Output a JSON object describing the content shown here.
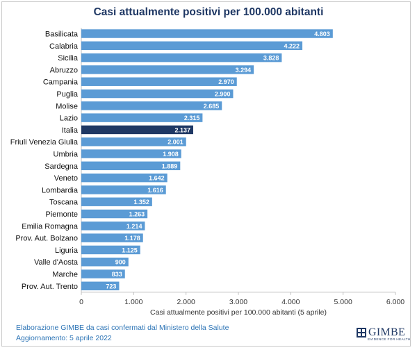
{
  "chart_data": {
    "type": "bar",
    "orientation": "horizontal",
    "title": "Casi attualmente positivi per 100.000 abitanti",
    "xlabel": "Casi attualmente positivi per 100.000 abitanti (5 aprile)",
    "xlim": [
      0,
      6000
    ],
    "xticks": [
      "0",
      "1.000",
      "2.000",
      "3.000",
      "4.000",
      "5.000",
      "6.000"
    ],
    "bar_color": "#5b9bd5",
    "highlight_color": "#1f3864",
    "highlight_category": "Italia",
    "categories": [
      "Basilicata",
      "Calabria",
      "Sicilia",
      "Abruzzo",
      "Campania",
      "Puglia",
      "Molise",
      "Lazio",
      "Italia",
      "Friuli Venezia Giulia",
      "Umbria",
      "Sardegna",
      "Veneto",
      "Lombardia",
      "Toscana",
      "Piemonte",
      "Emilia Romagna",
      "Prov. Aut. Bolzano",
      "Liguria",
      "Valle d'Aosta",
      "Marche",
      "Prov. Aut. Trento"
    ],
    "values": [
      4803,
      4222,
      3828,
      3294,
      2970,
      2900,
      2685,
      2315,
      2137,
      2001,
      1908,
      1889,
      1642,
      1616,
      1352,
      1263,
      1214,
      1178,
      1125,
      900,
      833,
      723
    ],
    "value_labels": [
      "4.803",
      "4.222",
      "3.828",
      "3.294",
      "2.970",
      "2.900",
      "2.685",
      "2.315",
      "2.137",
      "2.001",
      "1.908",
      "1.889",
      "1.642",
      "1.616",
      "1.352",
      "1.263",
      "1.214",
      "1.178",
      "1.125",
      "900",
      "833",
      "723"
    ]
  },
  "footer": {
    "source": "Elaborazione GIMBE da casi confermati dal Ministero della Salute",
    "updated": "Aggiornamento: 5 aprile 2022"
  },
  "logo": {
    "name": "GIMBE",
    "tagline": "EVIDENCE FOR HEALTH"
  }
}
